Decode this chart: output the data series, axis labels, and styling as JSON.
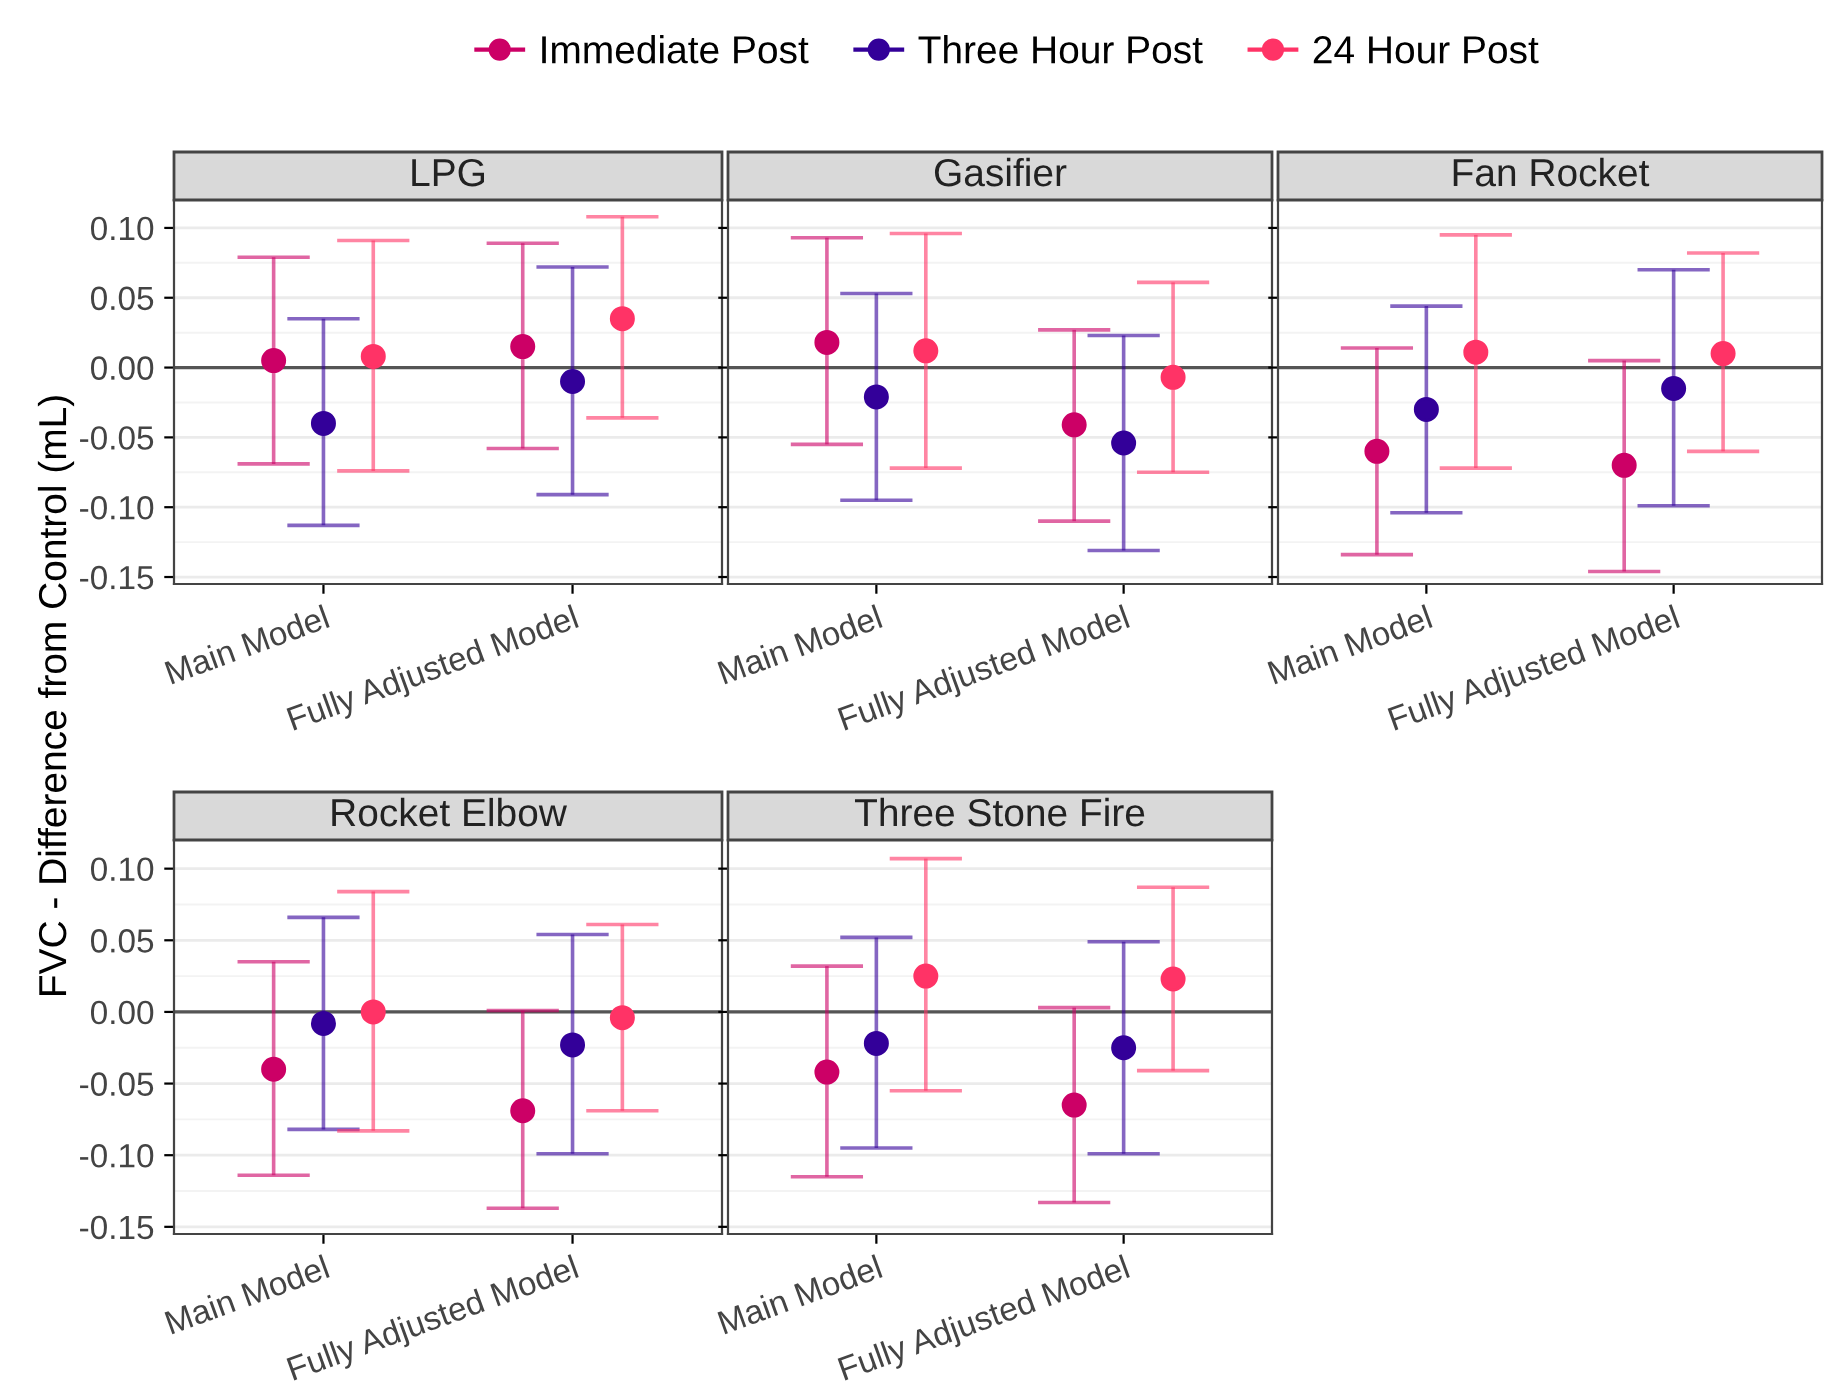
{
  "chart_data": [
    {
      "type": "scatter",
      "title": "LPG",
      "ylabel": "FVC - Difference from Control (mL)",
      "legend": "top",
      "categories": [
        "Main Model",
        "Fully Adjusted Model"
      ],
      "ylim": [
        -0.155,
        0.12
      ],
      "yticks": [
        {
          "value": 0.1,
          "label": "0.10"
        },
        {
          "value": 0.05,
          "label": "0.05"
        },
        {
          "value": 0,
          "label": "0.00"
        },
        {
          "value": -0.05,
          "label": "-0.05"
        },
        {
          "value": -0.1,
          "label": "-0.10"
        },
        {
          "value": -0.15,
          "label": "-0.15"
        }
      ],
      "grid": "y",
      "marker": "circle",
      "ref_lines": [
        {
          "axis": "y",
          "value": 0,
          "color": "#555555"
        }
      ],
      "series": [
        {
          "name": "Immediate Post",
          "color": "#cc0066",
          "values": [
            0.005,
            0.015
          ],
          "errors": [
            [
              -0.069,
              0.079
            ],
            [
              -0.058,
              0.089
            ]
          ]
        },
        {
          "name": "Three Hour Post",
          "color": "#330099",
          "values": [
            -0.04,
            -0.01
          ],
          "errors": [
            [
              -0.113,
              0.035
            ],
            [
              -0.091,
              0.072
            ]
          ]
        },
        {
          "name": "24 Hour Post",
          "color": "#ff3366",
          "values": [
            0.008,
            0.035
          ],
          "errors": [
            [
              -0.074,
              0.091
            ],
            [
              -0.036,
              0.108
            ]
          ]
        }
      ]
    },
    {
      "type": "scatter",
      "title": "Gasifier",
      "categories": [
        "Main Model",
        "Fully Adjusted Model"
      ],
      "ylim": [
        -0.155,
        0.12
      ],
      "yticks": [
        {
          "value": 0.1,
          "label": null
        },
        {
          "value": 0.05,
          "label": null
        },
        {
          "value": 0,
          "label": null
        },
        {
          "value": -0.05,
          "label": null
        },
        {
          "value": -0.1,
          "label": null
        },
        {
          "value": -0.15,
          "label": null
        }
      ],
      "tick_labels": "x",
      "grid": "y",
      "marker": "circle",
      "ref_lines": [
        {
          "axis": "y",
          "value": 0,
          "color": "#555555"
        }
      ],
      "series": [
        {
          "color": "#cc0066",
          "values": [
            0.018,
            -0.041
          ],
          "errors": [
            [
              -0.055,
              0.093
            ],
            [
              -0.11,
              0.027
            ]
          ]
        },
        {
          "color": "#330099",
          "values": [
            -0.021,
            -0.054
          ],
          "errors": [
            [
              -0.095,
              0.053
            ],
            [
              -0.131,
              0.023
            ]
          ]
        },
        {
          "color": "#ff3366",
          "values": [
            0.012,
            -0.007
          ],
          "errors": [
            [
              -0.072,
              0.096
            ],
            [
              -0.075,
              0.061
            ]
          ]
        }
      ]
    },
    {
      "type": "scatter",
      "title": "Fan Rocket",
      "categories": [
        "Main Model",
        "Fully Adjusted Model"
      ],
      "ylim": [
        -0.155,
        0.12
      ],
      "yticks": [
        {
          "value": 0.1,
          "label": null
        },
        {
          "value": 0.05,
          "label": null
        },
        {
          "value": 0,
          "label": null
        },
        {
          "value": -0.05,
          "label": null
        },
        {
          "value": -0.1,
          "label": null
        },
        {
          "value": -0.15,
          "label": null
        }
      ],
      "tick_labels": "x",
      "grid": "y",
      "marker": "circle",
      "ref_lines": [
        {
          "axis": "y",
          "value": 0,
          "color": "#555555"
        }
      ],
      "series": [
        {
          "color": "#cc0066",
          "values": [
            -0.06,
            -0.07
          ],
          "errors": [
            [
              -0.134,
              0.014
            ],
            [
              -0.146,
              0.005
            ]
          ]
        },
        {
          "color": "#330099",
          "values": [
            -0.03,
            -0.015
          ],
          "errors": [
            [
              -0.104,
              0.044
            ],
            [
              -0.099,
              0.07
            ]
          ]
        },
        {
          "color": "#ff3366",
          "values": [
            0.011,
            0.01
          ],
          "errors": [
            [
              -0.072,
              0.095
            ],
            [
              -0.06,
              0.082
            ]
          ]
        }
      ]
    },
    {
      "type": "scatter",
      "title": "Rocket Elbow",
      "categories": [
        "Main Model",
        "Fully Adjusted Model"
      ],
      "ylim": [
        -0.155,
        0.12
      ],
      "yticks": [
        {
          "value": 0.1,
          "label": "0.10"
        },
        {
          "value": 0.05,
          "label": "0.05"
        },
        {
          "value": 0,
          "label": "0.00"
        },
        {
          "value": -0.05,
          "label": "-0.05"
        },
        {
          "value": -0.1,
          "label": "-0.10"
        },
        {
          "value": -0.15,
          "label": "-0.15"
        }
      ],
      "grid": "y",
      "marker": "circle",
      "ref_lines": [
        {
          "axis": "y",
          "value": 0,
          "color": "#555555"
        }
      ],
      "series": [
        {
          "color": "#cc0066",
          "values": [
            -0.04,
            -0.069
          ],
          "errors": [
            [
              -0.114,
              0.035
            ],
            [
              -0.137,
              0.001
            ]
          ]
        },
        {
          "color": "#330099",
          "values": [
            -0.008,
            -0.023
          ],
          "errors": [
            [
              -0.082,
              0.066
            ],
            [
              -0.099,
              0.054
            ]
          ]
        },
        {
          "color": "#ff3366",
          "values": [
            0.0,
            -0.004
          ],
          "errors": [
            [
              -0.083,
              0.084
            ],
            [
              -0.069,
              0.061
            ]
          ]
        }
      ]
    },
    {
      "type": "scatter",
      "title": "Three Stone Fire",
      "categories": [
        "Main Model",
        "Fully Adjusted Model"
      ],
      "ylim": [
        -0.155,
        0.12
      ],
      "yticks": [
        {
          "value": 0.1,
          "label": null
        },
        {
          "value": 0.05,
          "label": null
        },
        {
          "value": 0,
          "label": null
        },
        {
          "value": -0.05,
          "label": null
        },
        {
          "value": -0.1,
          "label": null
        },
        {
          "value": -0.15,
          "label": null
        }
      ],
      "tick_labels": "x",
      "grid": "y",
      "marker": "circle",
      "ref_lines": [
        {
          "axis": "y",
          "value": 0,
          "color": "#555555"
        }
      ],
      "series": [
        {
          "color": "#cc0066",
          "values": [
            -0.042,
            -0.065
          ],
          "errors": [
            [
              -0.115,
              0.032
            ],
            [
              -0.133,
              0.003
            ]
          ]
        },
        {
          "color": "#330099",
          "values": [
            -0.022,
            -0.025
          ],
          "errors": [
            [
              -0.095,
              0.052
            ],
            [
              -0.099,
              0.049
            ]
          ]
        },
        {
          "color": "#ff3366",
          "values": [
            0.025,
            0.023
          ],
          "errors": [
            [
              -0.055,
              0.107
            ],
            [
              -0.041,
              0.087
            ]
          ]
        }
      ]
    }
  ]
}
